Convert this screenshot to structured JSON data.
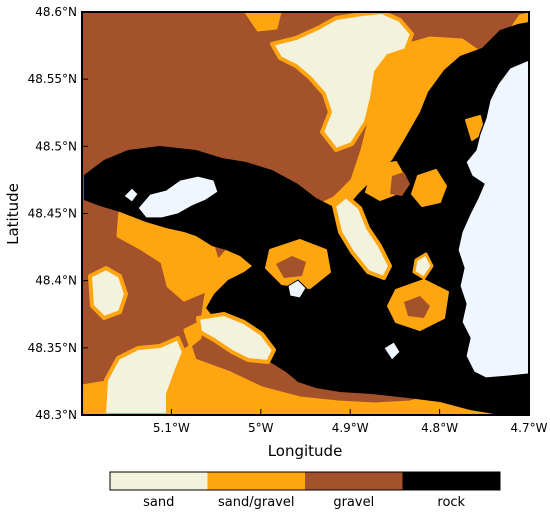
{
  "map": {
    "xlabel": "Longitude",
    "ylabel": "Latitude",
    "xlim": [
      -5.2,
      -4.7
    ],
    "ylim": [
      48.3,
      48.6
    ],
    "x_ticks": [
      {
        "value": -5.1,
        "label": "5.1°W"
      },
      {
        "value": -5.0,
        "label": "5°W"
      },
      {
        "value": -4.9,
        "label": "4.9°W"
      },
      {
        "value": -4.8,
        "label": "4.8°W"
      },
      {
        "value": -4.7,
        "label": "4.7°W"
      }
    ],
    "y_ticks": [
      {
        "value": 48.3,
        "label": "48.3°N"
      },
      {
        "value": 48.35,
        "label": "48.35°N"
      },
      {
        "value": 48.4,
        "label": "48.4°N"
      },
      {
        "value": 48.45,
        "label": "48.45°N"
      },
      {
        "value": 48.5,
        "label": "48.5°N"
      },
      {
        "value": 48.55,
        "label": "48.55°N"
      },
      {
        "value": 48.6,
        "label": "48.6°N"
      }
    ],
    "land_color": "#f0f6ff",
    "categories": [
      {
        "key": "sand",
        "label": "sand",
        "color": "#f3f2dc"
      },
      {
        "key": "sand_gravel",
        "label": "sand/gravel",
        "color": "#ffa510"
      },
      {
        "key": "gravel",
        "label": "gravel",
        "color": "#a3522c"
      },
      {
        "key": "rock",
        "label": "rock",
        "color": "#000000"
      }
    ]
  }
}
